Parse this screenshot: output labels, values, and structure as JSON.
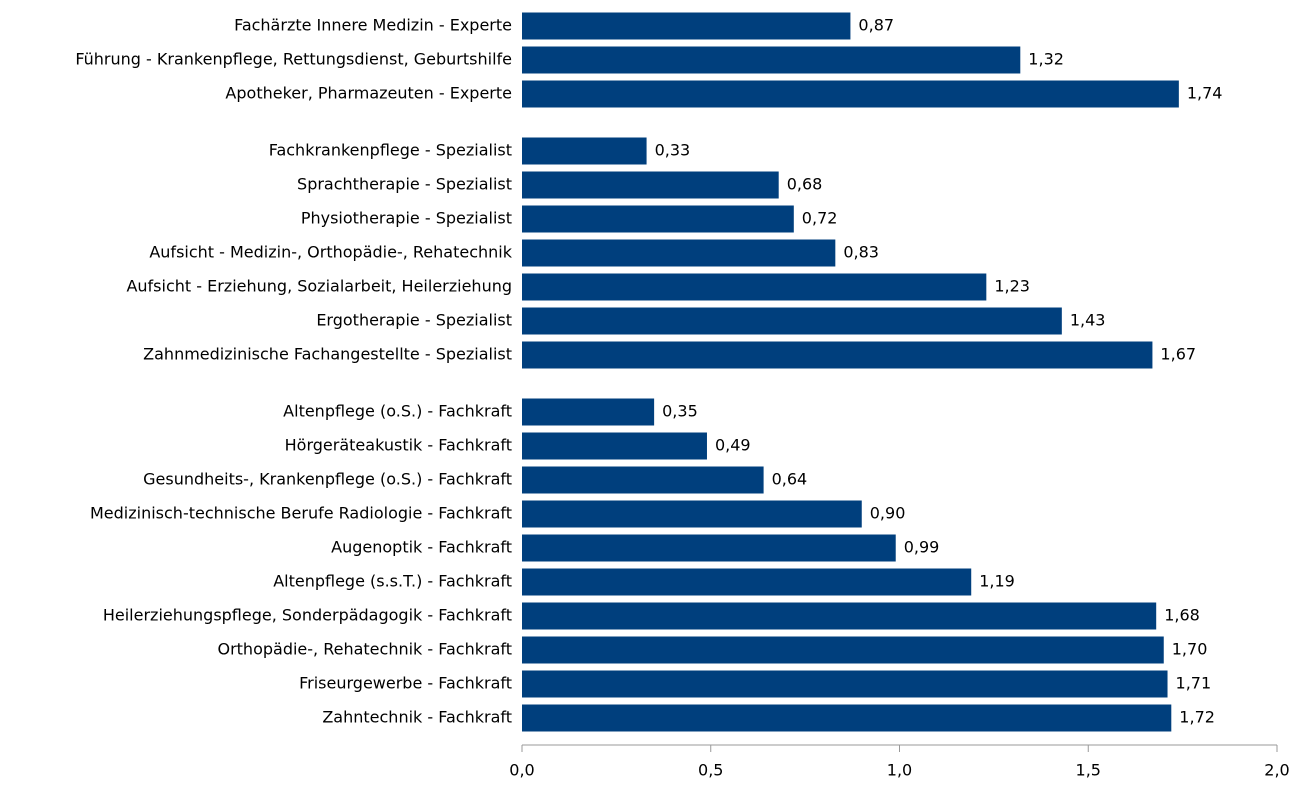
{
  "chart_data": {
    "type": "barh",
    "categories": [
      "Fachärzte Innere Medizin - Experte",
      "Führung - Krankenpflege, Rettungsdienst, Geburtshilfe",
      "Apotheker, Pharmazeuten - Experte",
      null,
      "Fachkrankenpflege - Spezialist",
      "Sprachtherapie - Spezialist",
      "Physiotherapie - Spezialist",
      "Aufsicht - Medizin-, Orthopädie-, Rehatechnik",
      "Aufsicht - Erziehung, Sozialarbeit, Heilerziehung",
      "Ergotherapie - Spezialist",
      "Zahnmedizinische Fachangestellte - Spezialist",
      null,
      "Altenpflege (o.S.) - Fachkraft",
      "Hörgeräteakustik - Fachkraft",
      "Gesundheits-, Krankenpflege (o.S.) - Fachkraft",
      "Medizinisch-technische Berufe Radiologie - Fachkraft",
      "Augenoptik - Fachkraft",
      "Altenpflege (s.s.T.) - Fachkraft",
      "Heilerziehungspflege, Sonderpädagogik - Fachkraft",
      "Orthopädie-, Rehatechnik - Fachkraft",
      "Friseurgewerbe - Fachkraft",
      "Zahntechnik - Fachkraft"
    ],
    "values": [
      0.87,
      1.32,
      1.74,
      null,
      0.33,
      0.68,
      0.72,
      0.83,
      1.23,
      1.43,
      1.67,
      null,
      0.35,
      0.49,
      0.64,
      0.9,
      0.99,
      1.19,
      1.68,
      1.7,
      1.71,
      1.72
    ],
    "value_labels": [
      "0,87",
      "1,32",
      "1,74",
      null,
      "0,33",
      "0,68",
      "0,72",
      "0,83",
      "1,23",
      "1,43",
      "1,67",
      null,
      "0,35",
      "0,49",
      "0,64",
      "0,90",
      "0,99",
      "1,19",
      "1,68",
      "1,70",
      "1,71",
      "1,72"
    ],
    "color": "#003f7d",
    "xlim": [
      0,
      2
    ],
    "xticks": [
      {
        "value": 0,
        "label": "0,0"
      },
      {
        "value": 0.5,
        "label": "0,5"
      },
      {
        "value": 1,
        "label": "1,0"
      },
      {
        "value": 1.5,
        "label": "1,5"
      },
      {
        "value": 2,
        "label": "2,0"
      }
    ]
  }
}
